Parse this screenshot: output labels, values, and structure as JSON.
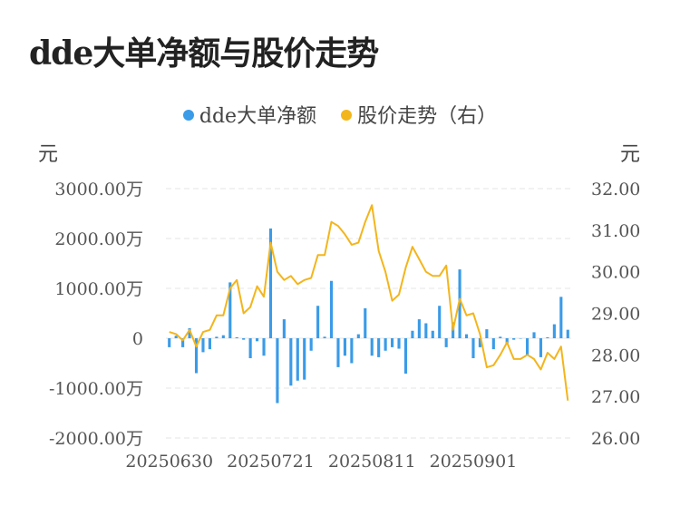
{
  "title": "dde大单净额与股价走势",
  "chart_data": {
    "type": "bar+line",
    "title": "dde大单净额与股价走势",
    "left_unit": "元",
    "right_unit": "元",
    "legend_position": "top-center",
    "grid": true,
    "y_left": {
      "min": -2000,
      "max": 3000,
      "ticks": [
        -2000,
        -1000,
        0,
        1000,
        2000,
        3000
      ],
      "tick_labels": [
        "-2000.00万",
        "-1000.00万",
        "0",
        "1000.00万",
        "2000.00万",
        "3000.00万"
      ]
    },
    "y_right": {
      "min": 26,
      "max": 32,
      "ticks": [
        26,
        27,
        28,
        29,
        30,
        31,
        32
      ],
      "tick_labels": [
        "26.00",
        "27.00",
        "28.00",
        "29.00",
        "30.00",
        "31.00",
        "32.00"
      ]
    },
    "x_tick_labels": [
      {
        "index": 0,
        "label": "20250630"
      },
      {
        "index": 15,
        "label": "20250721"
      },
      {
        "index": 30,
        "label": "20250811"
      },
      {
        "index": 45,
        "label": "20250901"
      }
    ],
    "colors": {
      "bar": "#3a9be8",
      "line": "#f3b51c",
      "grid": "#e6e6e6"
    },
    "series": [
      {
        "name": "dde大单净额",
        "type": "bar",
        "axis": "left",
        "values": [
          -180,
          50,
          -180,
          200,
          -700,
          -280,
          -220,
          30,
          60,
          1120,
          20,
          -30,
          -400,
          -60,
          -350,
          2200,
          -1300,
          380,
          -950,
          -850,
          -830,
          -250,
          650,
          30,
          1150,
          -580,
          -350,
          -500,
          80,
          600,
          -350,
          -380,
          -250,
          -180,
          -210,
          -710,
          150,
          380,
          300,
          150,
          650,
          -180,
          320,
          1380,
          80,
          -400,
          -180,
          180,
          -220,
          30,
          -120,
          -30,
          0,
          -350,
          120,
          -380,
          20,
          280,
          830,
          170
        ]
      },
      {
        "name": "股价走势（右）",
        "type": "line",
        "axis": "right",
        "values": [
          28.55,
          28.5,
          28.35,
          28.6,
          28.2,
          28.55,
          28.6,
          28.95,
          28.95,
          29.6,
          29.8,
          29.0,
          29.15,
          29.65,
          29.4,
          30.7,
          30.0,
          29.8,
          29.9,
          29.7,
          29.8,
          29.85,
          30.4,
          30.4,
          31.2,
          31.1,
          30.9,
          30.65,
          30.7,
          31.2,
          31.6,
          30.5,
          30.0,
          29.3,
          29.45,
          30.1,
          30.6,
          30.3,
          30.0,
          29.9,
          29.9,
          30.15,
          28.6,
          29.35,
          28.95,
          29.0,
          28.5,
          27.7,
          27.75,
          28.0,
          28.3,
          27.9,
          27.9,
          28.0,
          27.9,
          27.65,
          28.05,
          27.9,
          28.2,
          26.9
        ]
      }
    ]
  }
}
